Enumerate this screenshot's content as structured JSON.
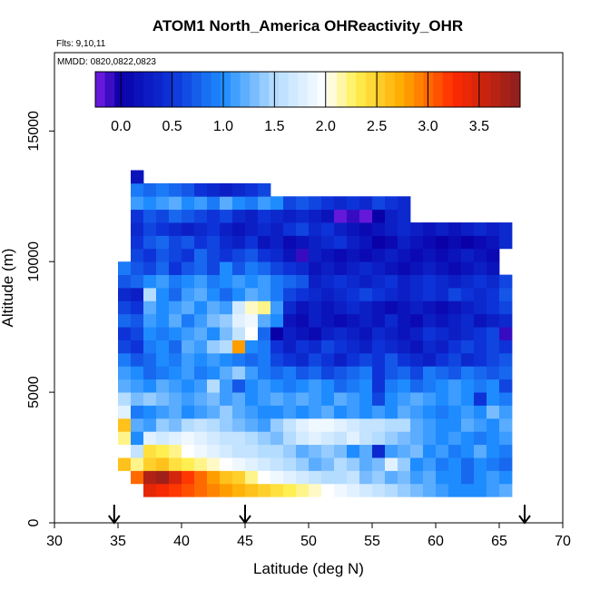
{
  "chart_data": {
    "type": "heatmap",
    "title": "ATOM1 North_America OHReactivity_OHR",
    "flights_label": "Flts: 9,10,11",
    "dates_label": "MMDD: 0820,0822,0823",
    "xlabel": "Latitude (deg N)",
    "ylabel": "Altitude (m)",
    "xlim": [
      30,
      70
    ],
    "ylim": [
      0,
      18000
    ],
    "x_ticks": [
      30,
      35,
      40,
      45,
      50,
      55,
      60,
      65,
      70
    ],
    "y_ticks": [
      0,
      5000,
      10000,
      15000
    ],
    "colorbar": {
      "range": [
        -0.25,
        3.9
      ],
      "ticks": [
        0.0,
        0.5,
        1.0,
        1.5,
        2.0,
        2.5,
        3.0,
        3.5
      ],
      "tick_labels": [
        "0.0",
        "0.5",
        "1.0",
        "1.5",
        "2.0",
        "2.5",
        "3.0",
        "3.5"
      ],
      "stops": [
        {
          "v": -0.25,
          "color": "#7a1ee6"
        },
        {
          "v": 0.0,
          "color": "#0a00a8"
        },
        {
          "v": 0.5,
          "color": "#0d33d8"
        },
        {
          "v": 1.0,
          "color": "#1e8cff"
        },
        {
          "v": 1.5,
          "color": "#b4dcff"
        },
        {
          "v": 2.0,
          "color": "#ffffff"
        },
        {
          "v": 2.3,
          "color": "#ffef50"
        },
        {
          "v": 2.75,
          "color": "#ffaa00"
        },
        {
          "v": 3.25,
          "color": "#ff2a00"
        },
        {
          "v": 3.9,
          "color": "#8c1e1e"
        }
      ]
    },
    "arrows_at_latitude": [
      34.7,
      45.0,
      67.0
    ],
    "grid": {
      "lat_start": 34.0,
      "lat_step": 1.0,
      "alt_step": 500,
      "rows": [
        {
          "alt": 1000,
          "values": [
            null,
            null,
            null,
            3.4,
            3.3,
            3.2,
            3.1,
            3.0,
            2.9,
            2.8,
            2.7,
            2.6,
            2.5,
            2.4,
            2.3,
            2.2,
            2.1,
            2.0,
            1.9,
            1.8,
            1.7,
            1.6,
            1.5,
            1.4,
            1.3,
            1.2,
            1.1,
            1.0,
            1.0,
            1.0,
            1.1,
            1.2
          ]
        },
        {
          "alt": 1500,
          "values": [
            null,
            null,
            3.0,
            3.7,
            3.8,
            3.5,
            3.2,
            3.0,
            2.8,
            2.6,
            2.5,
            2.2,
            2.0,
            1.9,
            1.8,
            1.7,
            1.6,
            1.5,
            1.5,
            1.6,
            1.3,
            1.4,
            1.2,
            1.3,
            1.1,
            1.2,
            1.0,
            1.0,
            0.8,
            1.0,
            1.1,
            1.0
          ]
        },
        {
          "alt": 2000,
          "values": [
            null,
            2.6,
            2.2,
            2.5,
            2.6,
            2.4,
            2.3,
            2.2,
            2.1,
            2.0,
            1.9,
            1.8,
            1.7,
            1.6,
            1.5,
            1.4,
            1.2,
            1.3,
            1.5,
            1.4,
            1.2,
            1.3,
            1.8,
            1.4,
            1.0,
            1.1,
            0.9,
            1.0,
            0.8,
            1.0,
            0.9,
            0.8
          ]
        },
        {
          "alt": 2500,
          "values": [
            null,
            2.0,
            1.6,
            2.4,
            2.3,
            2.2,
            2.0,
            1.9,
            1.8,
            1.7,
            1.6,
            1.6,
            1.5,
            1.5,
            1.4,
            1.2,
            1.3,
            1.4,
            1.3,
            1.0,
            1.2,
            0.4,
            1.1,
            1.2,
            1.3,
            1.0,
            1.1,
            0.9,
            1.0,
            1.2,
            1.0,
            0.9
          ]
        },
        {
          "alt": 3000,
          "values": [
            null,
            2.2,
            1.0,
            1.8,
            1.7,
            1.8,
            1.9,
            1.8,
            1.7,
            1.6,
            1.6,
            1.5,
            1.4,
            1.3,
            1.5,
            1.7,
            1.8,
            1.7,
            1.6,
            1.8,
            1.6,
            1.5,
            1.4,
            1.3,
            1.2,
            1.1,
            1.0,
            1.1,
            1.0,
            0.9,
            1.0,
            1.1
          ]
        },
        {
          "alt": 3500,
          "values": [
            null,
            2.6,
            1.2,
            1.1,
            1.4,
            1.3,
            1.5,
            1.6,
            1.5,
            1.4,
            1.3,
            1.2,
            1.1,
            1.4,
            1.6,
            1.8,
            1.9,
            1.9,
            1.8,
            1.7,
            1.6,
            1.6,
            1.5,
            1.5,
            1.2,
            1.1,
            1.0,
            1.0,
            1.2,
            1.1,
            1.0,
            1.2
          ]
        },
        {
          "alt": 4000,
          "values": [
            null,
            1.8,
            0.9,
            1.0,
            1.1,
            1.2,
            1.0,
            1.1,
            1.2,
            1.4,
            1.2,
            1.1,
            1.0,
            1.0,
            1.1,
            1.0,
            1.1,
            1.2,
            1.0,
            1.1,
            1.0,
            1.1,
            1.0,
            1.2,
            1.1,
            1.0,
            0.9,
            1.0,
            1.1,
            1.0,
            1.3,
            1.1
          ]
        },
        {
          "alt": 4500,
          "values": [
            null,
            1.5,
            1.3,
            1.4,
            1.3,
            1.2,
            1.1,
            1.2,
            1.3,
            1.1,
            1.2,
            1.0,
            1.1,
            1.2,
            1.1,
            1.2,
            1.1,
            1.0,
            1.2,
            1.1,
            1.0,
            0.6,
            1.0,
            1.1,
            1.2,
            1.1,
            1.0,
            1.1,
            1.0,
            0.5,
            1.0,
            0.9
          ]
        },
        {
          "alt": 5000,
          "values": [
            null,
            1.2,
            1.1,
            1.0,
            1.2,
            1.1,
            1.0,
            1.1,
            1.5,
            1.1,
            0.7,
            1.0,
            1.1,
            1.0,
            0.9,
            1.0,
            1.1,
            1.0,
            0.8,
            0.9,
            1.0,
            0.5,
            0.9,
            1.0,
            0.8,
            0.9,
            1.0,
            1.1,
            1.0,
            0.9,
            1.0,
            0.6
          ]
        },
        {
          "alt": 5500,
          "values": [
            null,
            1.1,
            1.0,
            0.8,
            0.9,
            1.0,
            1.1,
            0.9,
            1.0,
            1.2,
            1.4,
            1.1,
            0.9,
            0.8,
            0.9,
            0.7,
            0.8,
            0.6,
            0.7,
            0.8,
            0.9,
            0.5,
            0.7,
            0.8,
            0.6,
            0.9,
            0.8,
            0.7,
            0.9,
            0.8,
            0.7,
            0.8
          ]
        },
        {
          "alt": 6000,
          "values": [
            null,
            0.9,
            0.7,
            0.8,
            1.0,
            0.9,
            1.1,
            1.0,
            1.1,
            1.0,
            0.9,
            0.8,
            0.9,
            0.6,
            0.5,
            0.4,
            0.6,
            0.5,
            0.3,
            0.5,
            0.6,
            0.5,
            0.7,
            0.5,
            0.4,
            0.3,
            0.5,
            0.6,
            0.4,
            0.5,
            0.6,
            0.7
          ]
        },
        {
          "alt": 6500,
          "values": [
            null,
            0.6,
            0.5,
            0.9,
            1.0,
            0.8,
            1.2,
            1.1,
            1.4,
            1.5,
            2.8,
            1.0,
            0.9,
            0.5,
            0.3,
            0.5,
            0.4,
            0.6,
            0.5,
            0.4,
            0.3,
            0.5,
            0.4,
            0.3,
            0.2,
            0.4,
            0.3,
            0.5,
            0.6,
            0.5,
            0.6,
            0.5
          ]
        },
        {
          "alt": 7000,
          "values": [
            null,
            0.5,
            0.6,
            1.0,
            0.9,
            1.0,
            1.1,
            1.2,
            1.0,
            1.3,
            1.6,
            2.0,
            0.8,
            0.0,
            0.3,
            0.2,
            0.1,
            0.3,
            0.4,
            0.3,
            0.2,
            0.4,
            0.3,
            0.2,
            0.3,
            0.5,
            0.4,
            0.3,
            0.4,
            0.5,
            0.6,
            -0.1
          ]
        },
        {
          "alt": 7500,
          "values": [
            null,
            0.8,
            0.7,
            1.1,
            1.0,
            1.2,
            0.9,
            1.1,
            1.3,
            1.4,
            1.8,
            1.9,
            1.2,
            1.0,
            0.2,
            0.1,
            0.3,
            0.2,
            0.1,
            0.2,
            0.3,
            0.2,
            0.4,
            0.2,
            0.1,
            0.3,
            0.2,
            0.3,
            0.4,
            0.2,
            0.3,
            0.4
          ]
        },
        {
          "alt": 8000,
          "values": [
            null,
            0.6,
            0.5,
            1.2,
            1.0,
            1.1,
            1.2,
            1.0,
            1.2,
            1.1,
            1.7,
            2.1,
            2.2,
            1.1,
            0.4,
            0.2,
            0.3,
            0.2,
            0.3,
            0.4,
            0.3,
            0.2,
            0.1,
            0.2,
            0.3,
            0.2,
            0.1,
            0.2,
            0.3,
            0.4,
            0.5,
            0.6
          ]
        },
        {
          "alt": 8500,
          "values": [
            null,
            0.4,
            0.3,
            1.5,
            1.0,
            0.8,
            1.1,
            1.2,
            1.0,
            0.8,
            1.0,
            1.2,
            1.1,
            0.9,
            0.6,
            0.5,
            0.4,
            0.3,
            0.4,
            0.5,
            0.6,
            0.5,
            0.4,
            0.3,
            0.4,
            0.5,
            0.4,
            0.6,
            0.5,
            0.4,
            0.5,
            0.7
          ]
        },
        {
          "alt": 9000,
          "values": [
            null,
            0.7,
            0.8,
            1.0,
            1.1,
            0.9,
            1.0,
            1.1,
            0.9,
            1.0,
            1.1,
            1.0,
            1.1,
            0.9,
            0.8,
            0.7,
            0.3,
            0.4,
            0.5,
            0.4,
            0.3,
            0.4,
            0.5,
            0.3,
            0.4,
            0.5,
            0.4,
            0.3,
            0.4,
            0.5,
            0.4,
            0.6
          ]
        },
        {
          "alt": 9500,
          "values": [
            null,
            0.9,
            0.7,
            0.6,
            0.8,
            0.5,
            0.7,
            0.8,
            0.6,
            1.0,
            0.7,
            0.9,
            0.8,
            0.6,
            0.5,
            0.4,
            0.2,
            0.3,
            0.2,
            0.3,
            0.4,
            0.3,
            0.2,
            0.1,
            0.2,
            0.3,
            0.2,
            0.1,
            0.2,
            0.3,
            0.2,
            null
          ]
        },
        {
          "alt": 10000,
          "values": [
            null,
            null,
            0.6,
            0.5,
            0.7,
            0.6,
            0.5,
            0.8,
            0.6,
            0.5,
            0.6,
            0.7,
            0.5,
            0.4,
            0.2,
            -0.1,
            0.3,
            0.2,
            0.1,
            0.2,
            0.1,
            0.2,
            0.3,
            0.2,
            0.1,
            0.2,
            0.1,
            0.2,
            0.3,
            0.2,
            0.1,
            null
          ]
        },
        {
          "alt": 10500,
          "values": [
            null,
            null,
            0.5,
            0.7,
            0.8,
            0.6,
            0.7,
            0.5,
            0.6,
            0.4,
            0.3,
            0.5,
            0.2,
            0.3,
            0.1,
            0.2,
            0.3,
            0.4,
            0.5,
            0.3,
            0.2,
            0.0,
            0.1,
            0.3,
            0.2,
            0.1,
            0.0,
            0.1,
            0.0,
            0.1,
            0.2,
            0.4
          ]
        },
        {
          "alt": 11000,
          "values": [
            null,
            null,
            0.4,
            0.6,
            0.5,
            0.4,
            0.3,
            0.4,
            0.5,
            0.3,
            0.2,
            0.3,
            0.4,
            0.3,
            0.5,
            0.6,
            0.4,
            0.5,
            0.3,
            0.2,
            0.1,
            0.2,
            0.3,
            0.4,
            0.3,
            0.2,
            0.3,
            0.2,
            0.3,
            0.4,
            0.3,
            0.4
          ]
        },
        {
          "alt": 11500,
          "values": [
            null,
            null,
            0.5,
            0.7,
            0.6,
            0.8,
            0.7,
            0.6,
            0.5,
            0.6,
            0.4,
            0.3,
            0.5,
            0.4,
            0.3,
            0.4,
            0.3,
            0.2,
            -0.2,
            -0.1,
            -0.2,
            0.0,
            0.3,
            0.4,
            null,
            null,
            null,
            null,
            null,
            null,
            null,
            null
          ]
        },
        {
          "alt": 12000,
          "values": [
            null,
            null,
            1.1,
            1.0,
            1.1,
            1.2,
            1.0,
            1.1,
            0.9,
            1.2,
            1.0,
            0.9,
            1.1,
            1.0,
            0.6,
            0.7,
            0.6,
            0.5,
            0.4,
            0.5,
            0.4,
            0.6,
            0.5,
            0.4,
            null,
            null,
            null,
            null,
            null,
            null,
            null,
            null
          ]
        },
        {
          "alt": 12500,
          "values": [
            null,
            null,
            0.9,
            0.8,
            0.9,
            0.8,
            0.7,
            0.5,
            0.4,
            0.3,
            0.4,
            0.5,
            0.6,
            null,
            null,
            null,
            null,
            null,
            null,
            null,
            null,
            null,
            null,
            null,
            null,
            null,
            null,
            null,
            null,
            null,
            null,
            null
          ]
        },
        {
          "alt": 13000,
          "values": [
            null,
            null,
            0.2,
            null,
            null,
            null,
            null,
            null,
            null,
            null,
            null,
            null,
            null,
            null,
            null,
            null,
            null,
            null,
            null,
            null,
            null,
            null,
            null,
            null,
            null,
            null,
            null,
            null,
            null,
            null,
            null,
            null
          ]
        }
      ],
      "note": "Each row covers [alt, alt+500) m; the first column of every row spans lat 34.0-35.0 (cells mostly empty there)."
    }
  }
}
